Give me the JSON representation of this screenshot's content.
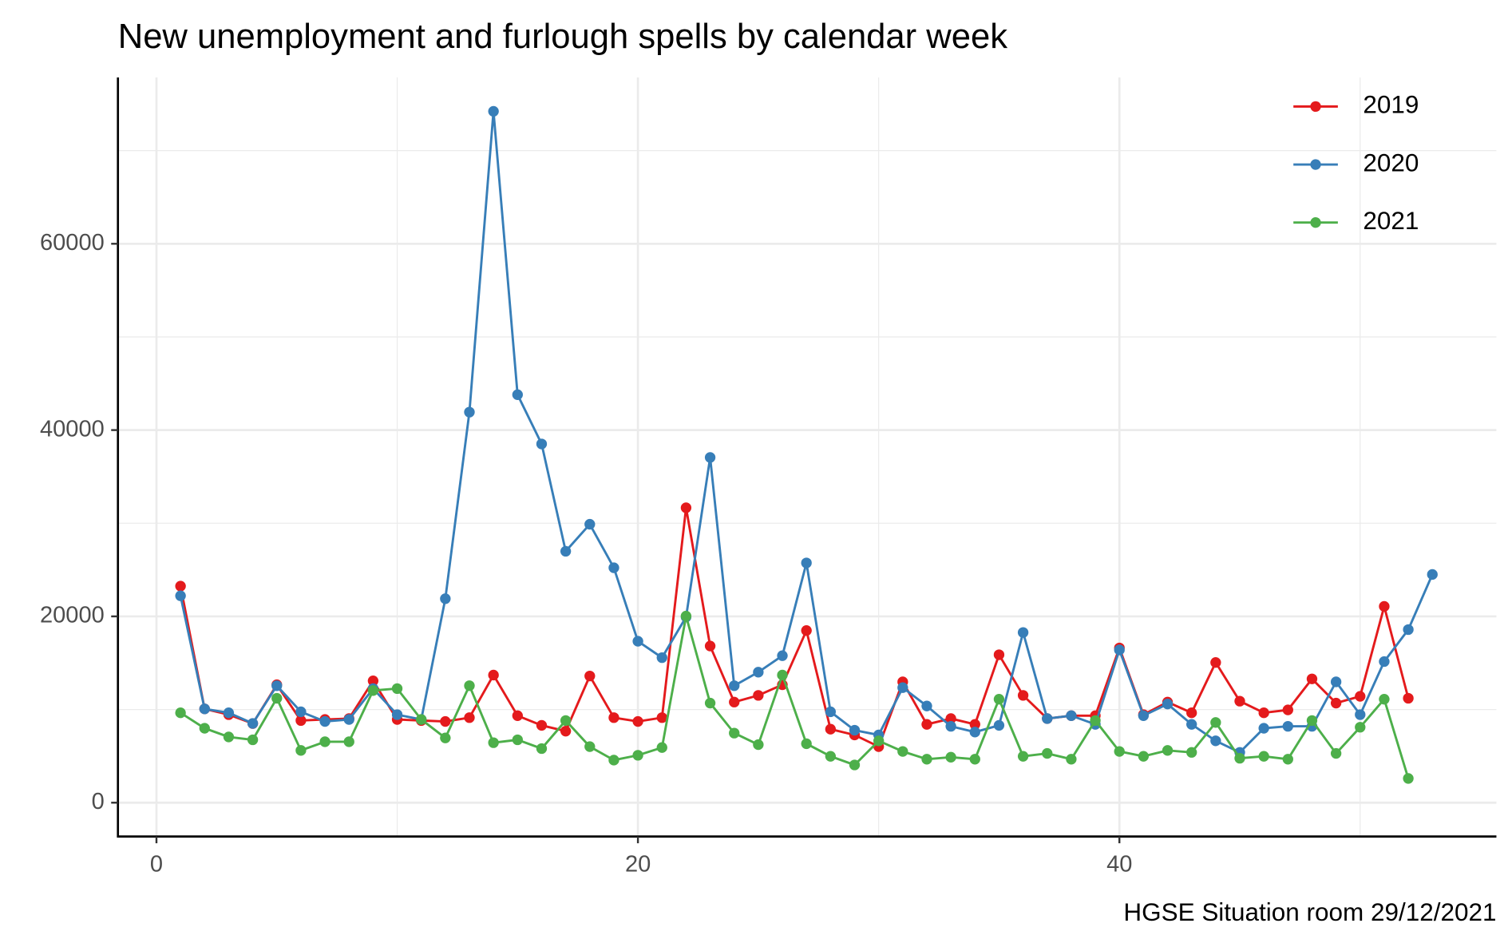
{
  "chart_data": {
    "type": "line",
    "title": "New unemployment and furlough spells by calendar week",
    "caption": "HGSE Situation room 29/12/2021",
    "x": [
      1,
      2,
      3,
      4,
      5,
      6,
      7,
      8,
      9,
      10,
      11,
      12,
      13,
      14,
      15,
      16,
      17,
      18,
      19,
      20,
      21,
      22,
      23,
      24,
      25,
      26,
      27,
      28,
      29,
      30,
      31,
      32,
      33,
      34,
      35,
      36,
      37,
      38,
      39,
      40,
      41,
      42,
      43,
      44,
      45,
      46,
      47,
      48,
      49,
      50,
      51,
      52,
      53
    ],
    "series": [
      {
        "name": "2019",
        "color": "#e41a1c",
        "values": [
          23250,
          10070,
          9450,
          8500,
          12660,
          8820,
          8930,
          9030,
          13080,
          8930,
          8820,
          8720,
          9130,
          13700,
          9340,
          8300,
          7680,
          13600,
          9130,
          8720,
          9130,
          31660,
          16820,
          10800,
          11520,
          12660,
          18480,
          7890,
          7270,
          6020,
          12970,
          8410,
          9030,
          8410,
          15880,
          11520,
          9030,
          9340,
          9340,
          16610,
          9450,
          10800,
          9650,
          15050,
          10900,
          9650,
          9960,
          13290,
          10690,
          11420,
          21070,
          11210,
          null
        ]
      },
      {
        "name": "2020",
        "color": "#377eb8",
        "values": [
          22210,
          10070,
          9650,
          8510,
          12560,
          9760,
          8720,
          8930,
          12250,
          9450,
          8930,
          21900,
          41930,
          74220,
          43800,
          38510,
          26990,
          29890,
          25220,
          17330,
          15570,
          19930,
          37060,
          12560,
          14010,
          15780,
          25740,
          9760,
          7780,
          7270,
          12350,
          10380,
          8200,
          7580,
          8300,
          18270,
          9030,
          9340,
          8410,
          16400,
          9340,
          10590,
          8410,
          6640,
          5400,
          7990,
          8200,
          8200,
          12970,
          9450,
          15150,
          18580,
          24500
        ]
      },
      {
        "name": "2021",
        "color": "#4daf4a",
        "values": [
          9650,
          7990,
          7060,
          6750,
          11210,
          5610,
          6540,
          6540,
          12040,
          12250,
          8930,
          6950,
          12560,
          6440,
          6750,
          5810,
          8820,
          6020,
          4570,
          5090,
          5920,
          20030,
          10690,
          7470,
          6230,
          13700,
          6330,
          4980,
          4050,
          6640,
          5500,
          4670,
          4880,
          4670,
          11110,
          4980,
          5290,
          4670,
          8820,
          5500,
          4980,
          5610,
          5400,
          8610,
          4770,
          4980,
          4670,
          8820,
          5290,
          8100,
          11110,
          2600,
          null
        ]
      }
    ],
    "xlim": [
      -1.6,
      55.66
    ],
    "ylim": [
      -3630,
      77850
    ],
    "xticks": [
      0,
      20,
      40
    ],
    "yticks": [
      0,
      20000,
      40000,
      60000
    ],
    "x_minor_grid": [
      10,
      30,
      50
    ],
    "y_minor_grid": [
      10000,
      30000,
      50000,
      70000
    ],
    "grid": true,
    "legend": "top-right"
  }
}
